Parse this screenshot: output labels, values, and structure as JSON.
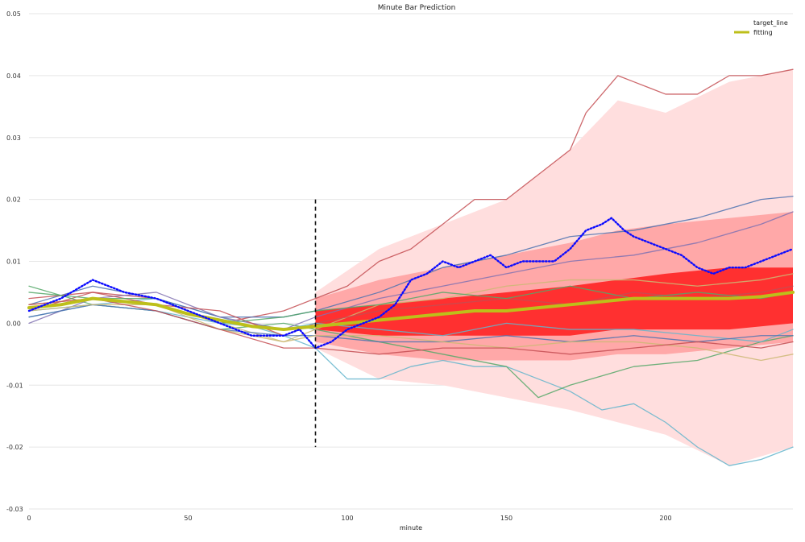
{
  "chart_data": {
    "type": "line",
    "title": "Minute Bar Prediction",
    "xlabel": "minute",
    "ylabel": "",
    "xlim": [
      0,
      240
    ],
    "ylim": [
      -0.03,
      0.05
    ],
    "x_ticks": [
      0,
      50,
      100,
      150,
      200
    ],
    "y_ticks": [
      -0.03,
      -0.02,
      -0.01,
      0.0,
      0.01,
      0.02,
      0.03,
      0.04,
      0.05
    ],
    "x_tick_labels": [
      "0",
      "50",
      "100",
      "150",
      "200"
    ],
    "y_tick_labels": [
      "-0.03",
      "-0.02",
      "-0.01",
      "0.00",
      "0.01",
      "0.02",
      "0.03",
      "0.04",
      "0.05"
    ],
    "grid": true,
    "legend": {
      "placement": "top-right",
      "entries": [
        "target_line",
        "fitting"
      ]
    },
    "split_marker": {
      "x": 90,
      "y_range": [
        -0.02,
        0.02
      ],
      "style": "dashed"
    },
    "bands": [
      {
        "name": "outer",
        "color": "#ffdede",
        "x": [
          90,
          110,
          130,
          150,
          170,
          185,
          200,
          220,
          240
        ],
        "lower": [
          -0.004,
          -0.009,
          -0.01,
          -0.012,
          -0.014,
          -0.016,
          -0.018,
          -0.023,
          -0.02
        ],
        "upper": [
          0.005,
          0.012,
          0.016,
          0.02,
          0.028,
          0.036,
          0.034,
          0.039,
          0.041
        ]
      },
      {
        "name": "mid",
        "color": "#ffa8a8",
        "x": [
          90,
          110,
          130,
          150,
          170,
          185,
          200,
          220,
          240
        ],
        "lower": [
          -0.003,
          -0.005,
          -0.006,
          -0.006,
          -0.006,
          -0.005,
          -0.005,
          -0.004,
          -0.003
        ],
        "upper": [
          0.004,
          0.007,
          0.009,
          0.011,
          0.013,
          0.015,
          0.016,
          0.017,
          0.018
        ]
      },
      {
        "name": "inner",
        "color": "#ff3030",
        "x": [
          90,
          110,
          130,
          150,
          170,
          185,
          200,
          220,
          240
        ],
        "lower": [
          -0.001,
          -0.002,
          -0.002,
          -0.002,
          -0.002,
          -0.001,
          -0.001,
          -0.001,
          0.0
        ],
        "upper": [
          0.002,
          0.003,
          0.004,
          0.005,
          0.006,
          0.007,
          0.008,
          0.009,
          0.009
        ]
      }
    ],
    "series": [
      {
        "name": "fitting",
        "color": "#bdbf1a",
        "width": 4,
        "x": [
          0,
          10,
          20,
          30,
          40,
          50,
          60,
          70,
          80,
          90,
          100,
          110,
          120,
          130,
          140,
          150,
          160,
          170,
          180,
          190,
          200,
          210,
          220,
          230,
          240
        ],
        "values": [
          0.0025,
          0.003,
          0.004,
          0.0035,
          0.003,
          0.0015,
          0.0005,
          -0.0005,
          -0.001,
          -0.0005,
          0.0,
          0.0005,
          0.001,
          0.0015,
          0.002,
          0.002,
          0.0025,
          0.003,
          0.0035,
          0.004,
          0.004,
          0.004,
          0.004,
          0.0043,
          0.005
        ]
      },
      {
        "name": "target_line",
        "color": "#0b0bff",
        "style": "dotted",
        "x": [
          0,
          10,
          20,
          30,
          40,
          50,
          60,
          70,
          80,
          85,
          90,
          95,
          100,
          105,
          110,
          115,
          120,
          125,
          130,
          135,
          140,
          145,
          150,
          155,
          160,
          165,
          170,
          175,
          180,
          183,
          187,
          190,
          195,
          200,
          205,
          210,
          215,
          220,
          225,
          230,
          235,
          240
        ],
        "values": [
          0.002,
          0.004,
          0.007,
          0.005,
          0.004,
          0.002,
          0.0,
          -0.002,
          -0.002,
          -0.001,
          -0.004,
          -0.003,
          -0.001,
          0.0,
          0.001,
          0.003,
          0.007,
          0.008,
          0.01,
          0.009,
          0.01,
          0.011,
          0.009,
          0.01,
          0.01,
          0.01,
          0.012,
          0.015,
          0.016,
          0.017,
          0.015,
          0.014,
          0.013,
          0.012,
          0.011,
          0.009,
          0.008,
          0.009,
          0.009,
          0.01,
          0.011,
          0.012
        ]
      },
      {
        "name": "upper-extreme",
        "color": "#c44e52",
        "x": [
          0,
          20,
          40,
          60,
          80,
          90,
          100,
          110,
          120,
          130,
          140,
          150,
          160,
          170,
          175,
          185,
          190,
          195,
          200,
          210,
          220,
          230,
          240
        ],
        "values": [
          0.002,
          0.005,
          0.004,
          0.0,
          0.002,
          0.004,
          0.006,
          0.01,
          0.012,
          0.016,
          0.02,
          0.02,
          0.024,
          0.028,
          0.034,
          0.04,
          0.039,
          0.038,
          0.037,
          0.037,
          0.04,
          0.04,
          0.041
        ]
      },
      {
        "name": "lower-extreme",
        "color": "#64b5cd",
        "x": [
          0,
          20,
          40,
          60,
          80,
          90,
          100,
          110,
          120,
          130,
          140,
          150,
          160,
          170,
          180,
          190,
          200,
          210,
          220,
          230,
          240
        ],
        "values": [
          0.001,
          0.003,
          0.004,
          0.001,
          -0.002,
          -0.004,
          -0.009,
          -0.009,
          -0.007,
          -0.006,
          -0.007,
          -0.007,
          -0.009,
          -0.011,
          -0.014,
          -0.013,
          -0.016,
          -0.02,
          -0.023,
          -0.022,
          -0.02
        ]
      },
      {
        "name": "blue-upper",
        "color": "#4c72b0",
        "x": [
          0,
          20,
          40,
          60,
          80,
          90,
          110,
          130,
          150,
          170,
          190,
          210,
          230,
          240
        ],
        "values": [
          0.003,
          0.006,
          0.004,
          0.001,
          0.001,
          0.002,
          0.005,
          0.009,
          0.011,
          0.014,
          0.015,
          0.017,
          0.02,
          0.0205
        ]
      },
      {
        "name": "green-lower",
        "color": "#55a868",
        "x": [
          0,
          20,
          40,
          60,
          80,
          90,
          110,
          130,
          150,
          160,
          170,
          190,
          210,
          230,
          240
        ],
        "values": [
          0.006,
          0.003,
          0.002,
          -0.001,
          0.0,
          -0.001,
          -0.003,
          -0.005,
          -0.007,
          -0.012,
          -0.01,
          -0.007,
          -0.006,
          -0.003,
          -0.002
        ]
      },
      {
        "name": "purple-mid",
        "color": "#8172b2",
        "x": [
          0,
          20,
          40,
          60,
          80,
          90,
          110,
          130,
          150,
          170,
          190,
          210,
          230,
          240
        ],
        "values": [
          0.0,
          0.004,
          0.005,
          0.001,
          -0.001,
          0.001,
          0.004,
          0.006,
          0.008,
          0.01,
          0.011,
          0.013,
          0.016,
          0.018
        ]
      },
      {
        "name": "tan-mid",
        "color": "#ccb974",
        "x": [
          0,
          20,
          40,
          60,
          80,
          90,
          110,
          130,
          150,
          170,
          190,
          210,
          230,
          240
        ],
        "values": [
          0.003,
          0.004,
          0.003,
          0.0,
          -0.003,
          -0.001,
          0.003,
          0.004,
          0.006,
          0.007,
          0.007,
          0.006,
          0.007,
          0.008
        ]
      },
      {
        "name": "red-mid",
        "color": "#c44e52",
        "x": [
          0,
          20,
          40,
          60,
          80,
          90,
          110,
          130,
          150,
          170,
          190,
          210,
          230,
          240
        ],
        "values": [
          0.004,
          0.005,
          0.003,
          0.002,
          -0.002,
          0.0,
          0.002,
          0.003,
          0.004,
          0.003,
          0.005,
          0.004,
          0.005,
          0.006
        ]
      },
      {
        "name": "cyan-low",
        "color": "#64b5cd",
        "x": [
          0,
          20,
          40,
          60,
          80,
          90,
          110,
          130,
          150,
          170,
          190,
          210,
          230,
          240
        ],
        "values": [
          0.002,
          0.003,
          0.002,
          0.0,
          -0.001,
          0.0,
          -0.001,
          -0.002,
          0.0,
          -0.001,
          -0.001,
          -0.002,
          -0.003,
          -0.001
        ]
      },
      {
        "name": "green-mid",
        "color": "#55a868",
        "x": [
          0,
          20,
          40,
          60,
          80,
          90,
          110,
          130,
          150,
          170,
          190,
          210,
          230,
          240
        ],
        "values": [
          0.005,
          0.004,
          0.004,
          0.0,
          0.001,
          0.002,
          0.003,
          0.005,
          0.004,
          0.006,
          0.004,
          0.005,
          0.004,
          0.005
        ]
      },
      {
        "name": "blue-low",
        "color": "#4c72b0",
        "x": [
          0,
          20,
          40,
          60,
          80,
          90,
          110,
          130,
          150,
          170,
          190,
          210,
          230,
          240
        ],
        "values": [
          0.001,
          0.003,
          0.002,
          -0.001,
          -0.002,
          -0.002,
          -0.003,
          -0.003,
          -0.002,
          -0.003,
          -0.002,
          -0.003,
          -0.002,
          -0.002
        ]
      },
      {
        "name": "tan-low",
        "color": "#ccb974",
        "x": [
          0,
          20,
          40,
          60,
          80,
          90,
          110,
          130,
          150,
          170,
          190,
          210,
          230,
          240
        ],
        "values": [
          0.002,
          0.003,
          0.003,
          -0.001,
          -0.003,
          -0.002,
          -0.002,
          -0.003,
          -0.004,
          -0.003,
          -0.003,
          -0.004,
          -0.006,
          -0.005
        ]
      },
      {
        "name": "red-low",
        "color": "#c44e52",
        "x": [
          0,
          20,
          40,
          60,
          80,
          90,
          110,
          130,
          150,
          170,
          190,
          210,
          230,
          240
        ],
        "values": [
          0.003,
          0.004,
          0.002,
          -0.001,
          -0.004,
          -0.004,
          -0.005,
          -0.004,
          -0.004,
          -0.005,
          -0.004,
          -0.003,
          -0.004,
          -0.003
        ]
      }
    ]
  }
}
